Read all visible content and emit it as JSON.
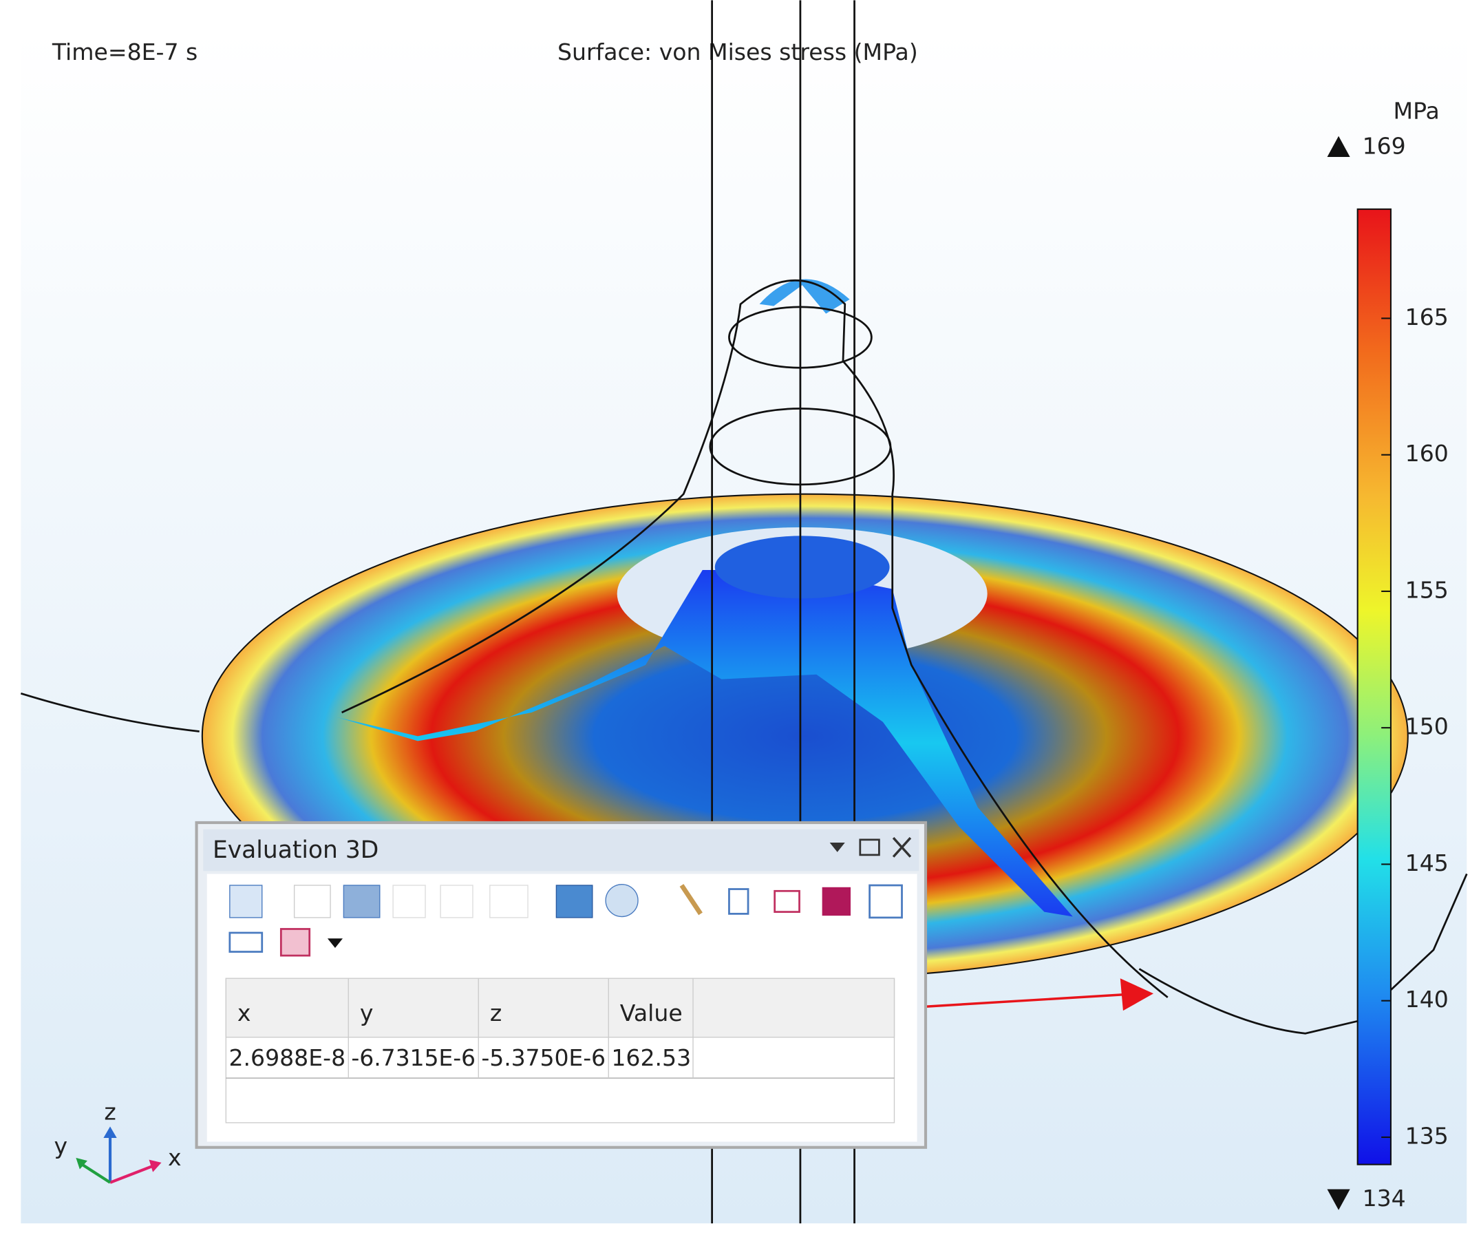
{
  "plot": {
    "time_label": "Time=8E-7 s",
    "title": "Surface: von Mises stress (MPa)"
  },
  "colorbar": {
    "unit": "MPa",
    "max": 169,
    "min": 134,
    "ticks": [
      135,
      140,
      145,
      150,
      155,
      160,
      165
    ]
  },
  "evaluation_panel": {
    "title": "Evaluation 3D",
    "columns": [
      "x",
      "y",
      "z",
      "Value"
    ],
    "rows": [
      [
        "2.6988E-8",
        "-6.7315E-6",
        "-5.3750E-6",
        "162.53"
      ]
    ]
  },
  "axes_triad": {
    "x": "x",
    "y": "y",
    "z": "z"
  }
}
